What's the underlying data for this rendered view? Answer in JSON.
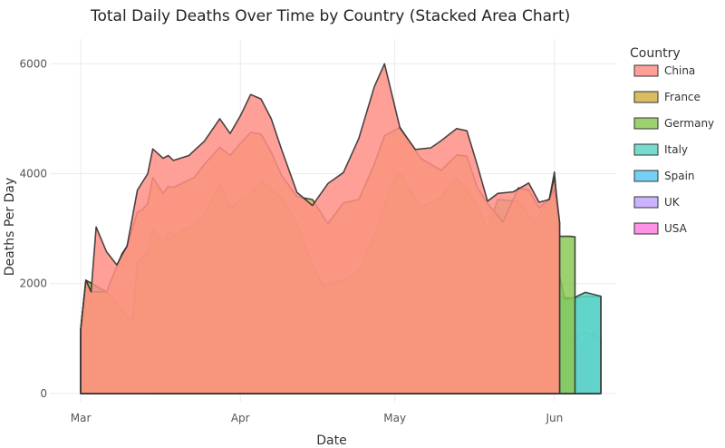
{
  "chart_data": {
    "type": "area",
    "stacked": true,
    "title": "Total Daily Deaths Over Time by Country (Stacked Area Chart)",
    "xlabel": "Date",
    "ylabel": "Deaths Per Day",
    "x_ticks": [
      {
        "day": 0,
        "label": "Mar"
      },
      {
        "day": 31,
        "label": "Apr"
      },
      {
        "day": 61,
        "label": "May"
      },
      {
        "day": 92,
        "label": "Jun"
      }
    ],
    "y_ticks": [
      0,
      2000,
      4000,
      6000
    ],
    "xlim_days": [
      -6,
      104
    ],
    "ylim": [
      -150,
      6450
    ],
    "grid": true,
    "legend": {
      "title": "Country",
      "position": "right"
    },
    "series": [
      {
        "name": "USA",
        "color": "#ff7fe0",
        "points": [
          [
            0,
            0
          ],
          [
            0,
            1170
          ],
          [
            2,
            1170
          ],
          [
            7,
            1040
          ],
          [
            12,
            880
          ],
          [
            14,
            830
          ],
          [
            16,
            860
          ],
          [
            17,
            420
          ],
          [
            19,
            350
          ],
          [
            22,
            660
          ],
          [
            24,
            900
          ],
          [
            27,
            1150
          ],
          [
            29,
            1540
          ],
          [
            30,
            1230
          ],
          [
            33,
            1420
          ],
          [
            35,
            1530
          ],
          [
            39,
            1280
          ],
          [
            42,
            1030
          ],
          [
            45,
            980
          ],
          [
            49,
            800
          ],
          [
            52,
            800
          ],
          [
            55,
            960
          ],
          [
            58,
            1200
          ],
          [
            61,
            1500
          ],
          [
            66,
            800
          ],
          [
            70,
            1350
          ],
          [
            73,
            1820
          ],
          [
            75,
            1550
          ],
          [
            77,
            1450
          ],
          [
            79,
            1200
          ],
          [
            82,
            520
          ],
          [
            89,
            1680
          ],
          [
            93,
            850
          ],
          [
            96,
            760
          ],
          [
            98,
            1000
          ],
          [
            100,
            1120
          ],
          [
            100,
            0
          ]
        ]
      },
      {
        "name": "UK",
        "color": "#c1a6ff",
        "points": [
          [
            13,
            0
          ],
          [
            13,
            870
          ],
          [
            14,
            1630
          ],
          [
            15,
            1780
          ],
          [
            16,
            1460
          ],
          [
            17,
            1630
          ],
          [
            18,
            1560
          ],
          [
            22,
            1720
          ],
          [
            24,
            1830
          ],
          [
            27,
            2300
          ],
          [
            29,
            2070
          ],
          [
            33,
            2120
          ],
          [
            35,
            2330
          ],
          [
            39,
            2020
          ],
          [
            42,
            1770
          ],
          [
            45,
            1570
          ],
          [
            48,
            1400
          ],
          [
            51,
            1460
          ],
          [
            55,
            1580
          ],
          [
            58,
            1770
          ],
          [
            61,
            2000
          ],
          [
            66,
            2180
          ],
          [
            70,
            2450
          ],
          [
            73,
            2580
          ],
          [
            75,
            2250
          ],
          [
            77,
            1860
          ],
          [
            82,
            1400
          ],
          [
            87,
            1350
          ],
          [
            89,
            1160
          ],
          [
            93,
            1030
          ],
          [
            96,
            1000
          ],
          [
            98,
            1110
          ],
          [
            101,
            1000
          ],
          [
            101,
            0
          ]
        ]
      },
      {
        "name": "Spain",
        "color": "#5cc8f2",
        "points": [
          [
            1,
            0
          ],
          [
            1,
            1170
          ],
          [
            12,
            1180
          ],
          [
            13,
            1380
          ],
          [
            14,
            1800
          ],
          [
            15,
            1950
          ],
          [
            16,
            1750
          ],
          [
            17,
            1850
          ],
          [
            18,
            1790
          ],
          [
            22,
            1950
          ],
          [
            24,
            2040
          ],
          [
            27,
            2320
          ],
          [
            29,
            2280
          ],
          [
            33,
            2350
          ],
          [
            35,
            2380
          ],
          [
            39,
            2110
          ],
          [
            42,
            1870
          ],
          [
            45,
            1620
          ],
          [
            48,
            1590
          ],
          [
            51,
            1750
          ],
          [
            55,
            2380
          ],
          [
            58,
            2520
          ],
          [
            61,
            2620
          ],
          [
            66,
            2380
          ],
          [
            70,
            2620
          ],
          [
            73,
            2890
          ],
          [
            75,
            2600
          ],
          [
            77,
            2270
          ],
          [
            82,
            1660
          ],
          [
            87,
            1480
          ],
          [
            89,
            1640
          ],
          [
            93,
            1750
          ],
          [
            96,
            1730
          ],
          [
            98,
            1770
          ],
          [
            101,
            1760
          ],
          [
            101,
            0
          ]
        ]
      },
      {
        "name": "Italy",
        "color": "#5fd6c3",
        "points": [
          [
            0,
            0
          ],
          [
            0,
            1170
          ],
          [
            1,
            2060
          ],
          [
            5,
            1850
          ],
          [
            8,
            1520
          ],
          [
            10,
            1300
          ],
          [
            12,
            1370
          ],
          [
            14,
            2170
          ],
          [
            15,
            2250
          ],
          [
            17,
            2080
          ],
          [
            18,
            2140
          ],
          [
            22,
            2330
          ],
          [
            24,
            2530
          ],
          [
            27,
            2990
          ],
          [
            29,
            2560
          ],
          [
            33,
            2620
          ],
          [
            35,
            2860
          ],
          [
            39,
            2610
          ],
          [
            42,
            2360
          ],
          [
            45,
            2060
          ],
          [
            48,
            1860
          ],
          [
            51,
            1930
          ],
          [
            54,
            2070
          ],
          [
            57,
            2600
          ],
          [
            61,
            3300
          ],
          [
            66,
            2640
          ],
          [
            70,
            2930
          ],
          [
            73,
            3080
          ],
          [
            75,
            2880
          ],
          [
            77,
            2650
          ],
          [
            79,
            2450
          ],
          [
            82,
            1990
          ],
          [
            86,
            2230
          ],
          [
            89,
            2240
          ],
          [
            92,
            2560
          ],
          [
            94,
            1710
          ],
          [
            96,
            1750
          ],
          [
            98,
            1840
          ],
          [
            101,
            1770
          ],
          [
            101,
            0
          ]
        ]
      },
      {
        "name": "Germany",
        "color": "#8cc856",
        "points": [
          [
            0,
            0
          ],
          [
            0,
            1170
          ],
          [
            1,
            2060
          ],
          [
            5,
            1850
          ],
          [
            8,
            1520
          ],
          [
            10,
            1300
          ],
          [
            11,
            2400
          ],
          [
            13,
            2560
          ],
          [
            14,
            2970
          ],
          [
            16,
            2760
          ],
          [
            17,
            2940
          ],
          [
            18,
            2880
          ],
          [
            22,
            3070
          ],
          [
            24,
            3250
          ],
          [
            27,
            3820
          ],
          [
            29,
            3380
          ],
          [
            33,
            3630
          ],
          [
            35,
            3860
          ],
          [
            39,
            3560
          ],
          [
            42,
            3100
          ],
          [
            44,
            2560
          ],
          [
            47,
            1960
          ],
          [
            51,
            2070
          ],
          [
            54,
            2230
          ],
          [
            57,
            2880
          ],
          [
            60,
            3720
          ],
          [
            62,
            4010
          ],
          [
            66,
            3380
          ],
          [
            70,
            3570
          ],
          [
            73,
            3920
          ],
          [
            75,
            3700
          ],
          [
            77,
            3420
          ],
          [
            79,
            2980
          ],
          [
            81,
            3530
          ],
          [
            85,
            3500
          ],
          [
            88,
            3110
          ],
          [
            91,
            3530
          ],
          [
            92,
            4030
          ],
          [
            93,
            2860
          ],
          [
            95,
            2860
          ],
          [
            96,
            2850
          ],
          [
            96,
            0
          ]
        ]
      },
      {
        "name": "France",
        "color": "#d4b248",
        "points": [
          [
            0,
            0
          ],
          [
            0,
            1170
          ],
          [
            1,
            2060
          ],
          [
            2,
            1850
          ],
          [
            5,
            1850
          ],
          [
            8,
            2540
          ],
          [
            9,
            2680
          ],
          [
            11,
            3300
          ],
          [
            12,
            3350
          ],
          [
            13,
            3460
          ],
          [
            14,
            3930
          ],
          [
            16,
            3640
          ],
          [
            17,
            3770
          ],
          [
            18,
            3750
          ],
          [
            22,
            3930
          ],
          [
            24,
            4170
          ],
          [
            27,
            4480
          ],
          [
            29,
            4330
          ],
          [
            31,
            4550
          ],
          [
            33,
            4750
          ],
          [
            35,
            4720
          ],
          [
            37,
            4390
          ],
          [
            39,
            3970
          ],
          [
            42,
            3580
          ],
          [
            45,
            3530
          ],
          [
            48,
            3090
          ],
          [
            51,
            3470
          ],
          [
            54,
            3530
          ],
          [
            57,
            4170
          ],
          [
            59,
            4690
          ],
          [
            62,
            4840
          ],
          [
            66,
            4280
          ],
          [
            70,
            4060
          ],
          [
            73,
            4340
          ],
          [
            75,
            4320
          ],
          [
            77,
            3750
          ],
          [
            79,
            3460
          ],
          [
            82,
            3120
          ],
          [
            85,
            3740
          ],
          [
            87,
            3700
          ],
          [
            89,
            3380
          ],
          [
            91,
            3540
          ],
          [
            92,
            3720
          ],
          [
            93,
            3110
          ],
          [
            93,
            0
          ]
        ]
      },
      {
        "name": "China",
        "color": "#ff8f86",
        "points": [
          [
            0,
            0
          ],
          [
            0,
            1170
          ],
          [
            1,
            2060
          ],
          [
            2,
            1850
          ],
          [
            3,
            3030
          ],
          [
            5,
            2580
          ],
          [
            7,
            2340
          ],
          [
            8,
            2520
          ],
          [
            9,
            2680
          ],
          [
            11,
            3700
          ],
          [
            13,
            4000
          ],
          [
            14,
            4450
          ],
          [
            16,
            4280
          ],
          [
            17,
            4330
          ],
          [
            18,
            4240
          ],
          [
            21,
            4330
          ],
          [
            24,
            4590
          ],
          [
            27,
            5000
          ],
          [
            29,
            4730
          ],
          [
            31,
            5050
          ],
          [
            33,
            5440
          ],
          [
            35,
            5360
          ],
          [
            37,
            5000
          ],
          [
            39,
            4440
          ],
          [
            42,
            3660
          ],
          [
            45,
            3420
          ],
          [
            48,
            3820
          ],
          [
            51,
            4020
          ],
          [
            54,
            4640
          ],
          [
            57,
            5580
          ],
          [
            59,
            6000
          ],
          [
            62,
            4830
          ],
          [
            65,
            4440
          ],
          [
            68,
            4470
          ],
          [
            70,
            4600
          ],
          [
            73,
            4820
          ],
          [
            75,
            4780
          ],
          [
            77,
            4160
          ],
          [
            79,
            3500
          ],
          [
            81,
            3640
          ],
          [
            84,
            3670
          ],
          [
            87,
            3830
          ],
          [
            89,
            3480
          ],
          [
            91,
            3530
          ],
          [
            92,
            3940
          ],
          [
            93,
            3110
          ],
          [
            93,
            0
          ]
        ]
      }
    ]
  }
}
